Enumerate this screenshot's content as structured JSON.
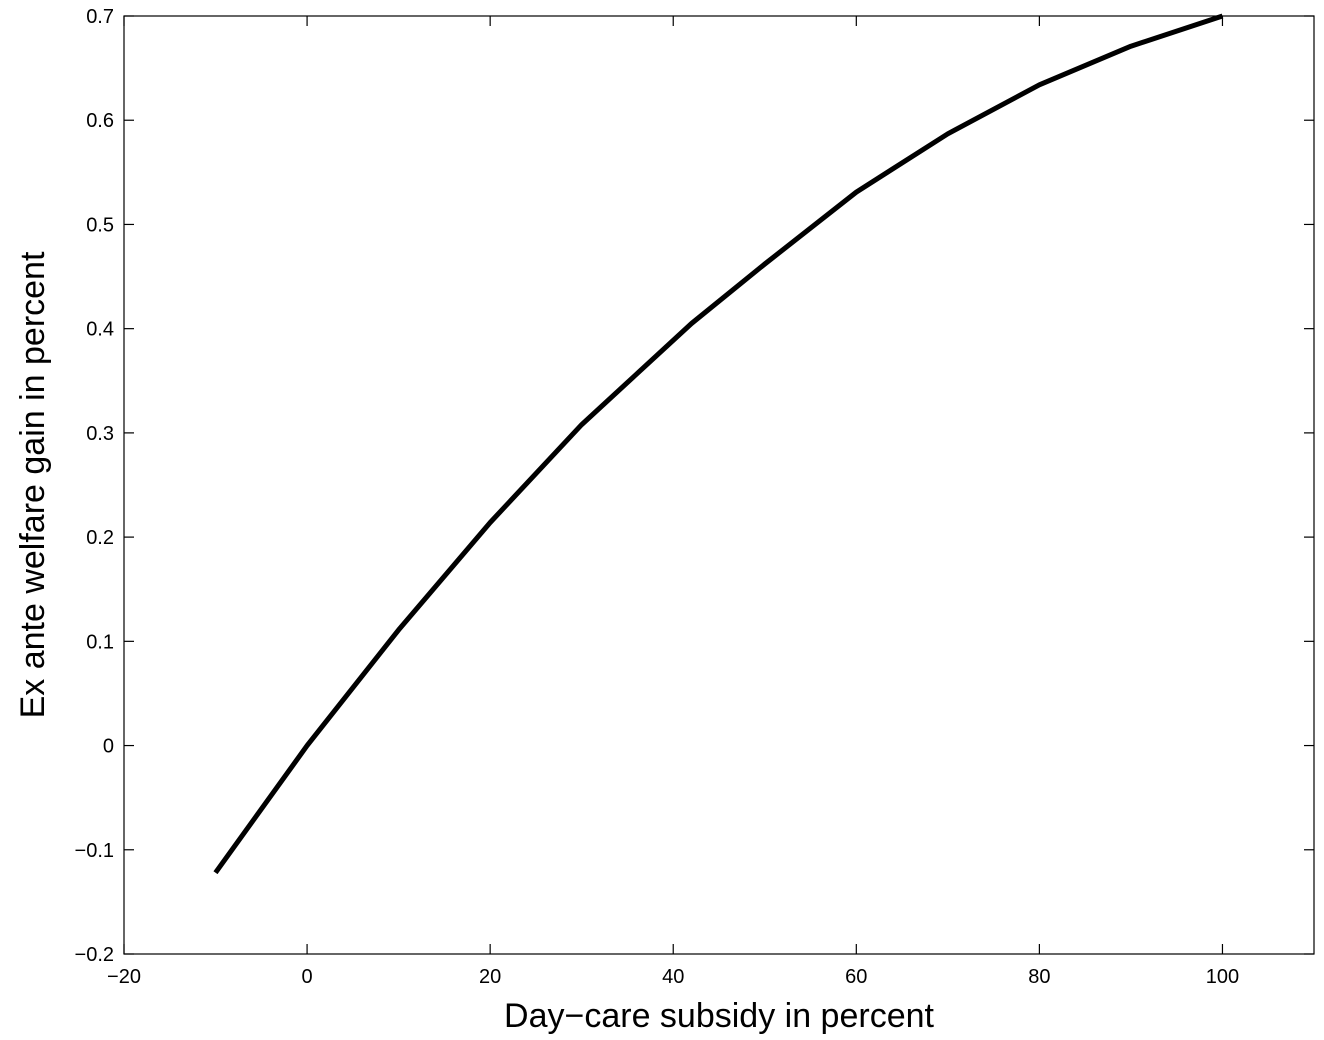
{
  "chart_data": {
    "type": "line",
    "title": "",
    "xlabel": "Day−care subsidy in percent",
    "ylabel": "Ex ante welfare gain in percent",
    "xlim": [
      -20,
      110
    ],
    "ylim": [
      -0.2,
      0.7
    ],
    "xticks": [
      -20,
      0,
      20,
      40,
      60,
      80,
      100
    ],
    "yticks": [
      -0.2,
      -0.1,
      0,
      0.1,
      0.2,
      0.3,
      0.4,
      0.5,
      0.6,
      0.7
    ],
    "xtick_labels": [
      "−20",
      "0",
      "20",
      "40",
      "60",
      "80",
      "100"
    ],
    "ytick_labels": [
      "−0.2",
      "−0.1",
      "0",
      "0.1",
      "0.2",
      "0.3",
      "0.4",
      "0.5",
      "0.6",
      "0.7"
    ],
    "grid": false,
    "series": [
      {
        "color": "#000000",
        "x": [
          -10,
          0,
          10,
          20,
          30,
          42,
          50,
          60,
          70,
          80,
          90,
          100
        ],
        "y": [
          -0.122,
          0.0,
          0.111,
          0.214,
          0.308,
          0.405,
          0.462,
          0.531,
          0.587,
          0.634,
          0.671,
          0.7
        ]
      }
    ]
  }
}
